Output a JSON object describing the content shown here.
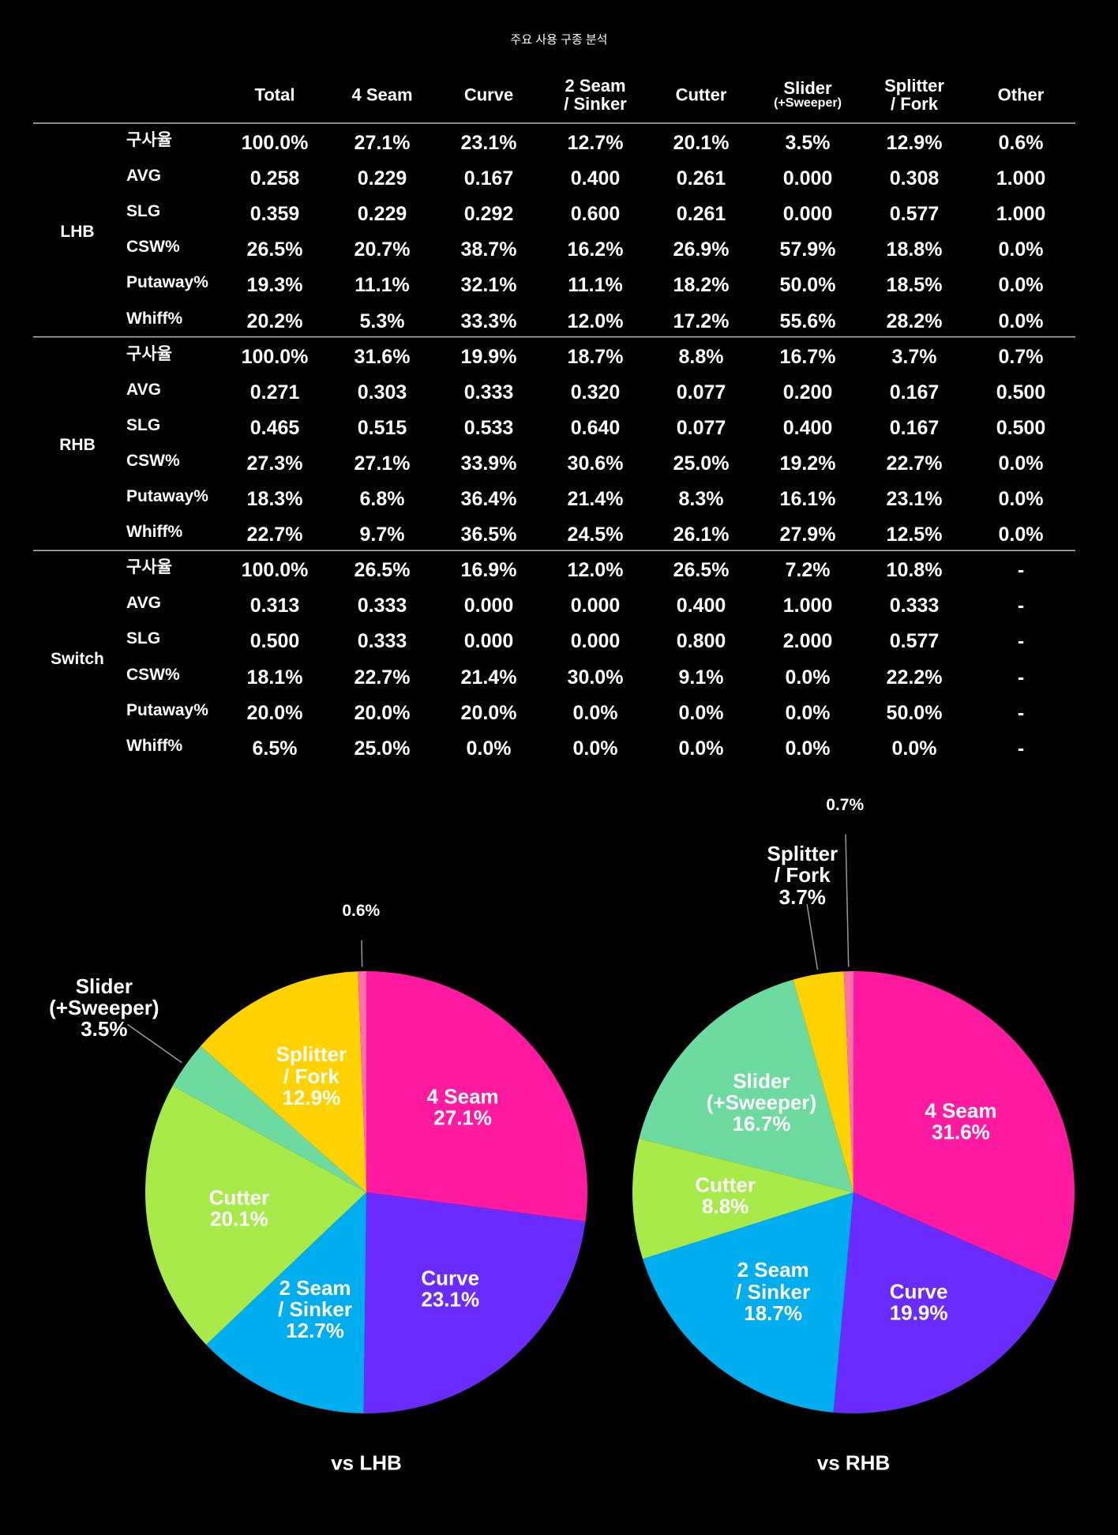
{
  "title": "주요 사용 구종 분석",
  "table": {
    "header": [
      "Total",
      "4 Seam",
      "Curve",
      "2 Seam\n/ Sinker",
      "Cutter",
      "Slider\n(+Sweeper)",
      "Splitter\n/ Fork",
      "Other"
    ],
    "groups": [
      {
        "name": "LHB",
        "rows": [
          {
            "label": "구사율",
            "values": [
              "100.0%",
              "27.1%",
              "23.1%",
              "12.7%",
              "20.1%",
              "3.5%",
              "12.9%",
              "0.6%"
            ]
          },
          {
            "label": "AVG",
            "values": [
              "0.258",
              "0.229",
              "0.167",
              "0.400",
              "0.261",
              "0.000",
              "0.308",
              "1.000"
            ]
          },
          {
            "label": "SLG",
            "values": [
              "0.359",
              "0.229",
              "0.292",
              "0.600",
              "0.261",
              "0.000",
              "0.577",
              "1.000"
            ]
          },
          {
            "label": "CSW%",
            "values": [
              "26.5%",
              "20.7%",
              "38.7%",
              "16.2%",
              "26.9%",
              "57.9%",
              "18.8%",
              "0.0%"
            ]
          },
          {
            "label": "Putaway%",
            "values": [
              "19.3%",
              "11.1%",
              "32.1%",
              "11.1%",
              "18.2%",
              "50.0%",
              "18.5%",
              "0.0%"
            ]
          },
          {
            "label": "Whiff%",
            "values": [
              "20.2%",
              "5.3%",
              "33.3%",
              "12.0%",
              "17.2%",
              "55.6%",
              "28.2%",
              "0.0%"
            ]
          }
        ]
      },
      {
        "name": "RHB",
        "rows": [
          {
            "label": "구사율",
            "values": [
              "100.0%",
              "31.6%",
              "19.9%",
              "18.7%",
              "8.8%",
              "16.7%",
              "3.7%",
              "0.7%"
            ]
          },
          {
            "label": "AVG",
            "values": [
              "0.271",
              "0.303",
              "0.333",
              "0.320",
              "0.077",
              "0.200",
              "0.167",
              "0.500"
            ]
          },
          {
            "label": "SLG",
            "values": [
              "0.465",
              "0.515",
              "0.533",
              "0.640",
              "0.077",
              "0.400",
              "0.167",
              "0.500"
            ]
          },
          {
            "label": "CSW%",
            "values": [
              "27.3%",
              "27.1%",
              "33.9%",
              "30.6%",
              "25.0%",
              "19.2%",
              "22.7%",
              "0.0%"
            ]
          },
          {
            "label": "Putaway%",
            "values": [
              "18.3%",
              "6.8%",
              "36.4%",
              "21.4%",
              "8.3%",
              "16.1%",
              "23.1%",
              "0.0%"
            ]
          },
          {
            "label": "Whiff%",
            "values": [
              "22.7%",
              "9.7%",
              "36.5%",
              "24.5%",
              "26.1%",
              "27.9%",
              "12.5%",
              "0.0%"
            ]
          }
        ]
      },
      {
        "name": "Switch",
        "rows": [
          {
            "label": "구사율",
            "values": [
              "100.0%",
              "26.5%",
              "16.9%",
              "12.0%",
              "26.5%",
              "7.2%",
              "10.8%",
              "-"
            ]
          },
          {
            "label": "AVG",
            "values": [
              "0.313",
              "0.333",
              "0.000",
              "0.000",
              "0.400",
              "1.000",
              "0.333",
              "-"
            ]
          },
          {
            "label": "SLG",
            "values": [
              "0.500",
              "0.333",
              "0.000",
              "0.000",
              "0.800",
              "2.000",
              "0.577",
              "-"
            ]
          },
          {
            "label": "CSW%",
            "values": [
              "18.1%",
              "22.7%",
              "21.4%",
              "30.0%",
              "9.1%",
              "0.0%",
              "22.2%",
              "-"
            ]
          },
          {
            "label": "Putaway%",
            "values": [
              "20.0%",
              "20.0%",
              "20.0%",
              "0.0%",
              "0.0%",
              "0.0%",
              "50.0%",
              "-"
            ]
          },
          {
            "label": "Whiff%",
            "values": [
              "6.5%",
              "25.0%",
              "0.0%",
              "0.0%",
              "0.0%",
              "0.0%",
              "0.0%",
              "-"
            ]
          }
        ]
      }
    ]
  },
  "chart_data": [
    {
      "type": "pie",
      "title": "vs LHB",
      "categories": [
        "4 Seam",
        "Curve",
        "2 Seam\n/ Sinker",
        "Cutter",
        "Slider\n(+Sweeper)",
        "Splitter\n/ Fork",
        null
      ],
      "values": [
        27.1,
        23.1,
        12.7,
        20.1,
        3.5,
        12.9,
        0.6
      ],
      "value_labels": [
        "27.1%",
        "23.1%",
        "12.7%",
        "20.1%",
        "3.5%",
        "12.9%",
        "0.6%"
      ],
      "colors": [
        "#ff1aa0",
        "#6a2bff",
        "#00adef",
        "#a8ea4a",
        "#6ddba0",
        "#ffd200",
        "#ff6fa8"
      ]
    },
    {
      "type": "pie",
      "title": "vs RHB",
      "categories": [
        "4 Seam",
        "Curve",
        "2 Seam\n/ Sinker",
        "Cutter",
        "Slider\n(+Sweeper)",
        "Splitter\n/ Fork",
        null
      ],
      "values": [
        31.6,
        19.9,
        18.7,
        8.8,
        16.7,
        3.7,
        0.7
      ],
      "value_labels": [
        "31.6%",
        "19.9%",
        "18.7%",
        "8.8%",
        "16.7%",
        "3.7%",
        "0.7%"
      ],
      "colors": [
        "#ff1aa0",
        "#6a2bff",
        "#00adef",
        "#a8ea4a",
        "#6ddba0",
        "#ffd200",
        "#ff6fa8"
      ]
    }
  ]
}
